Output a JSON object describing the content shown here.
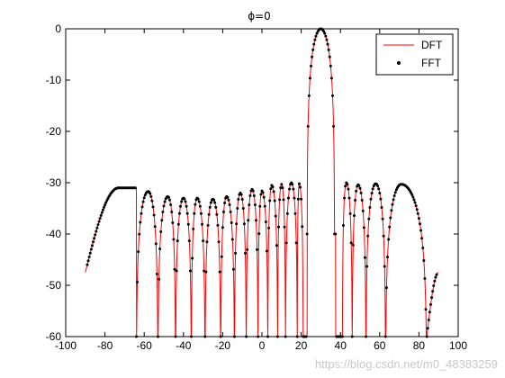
{
  "chart_data": {
    "type": "line",
    "title": "ϕ=0",
    "xlabel": "",
    "ylabel": "",
    "xlim": [
      -100,
      100
    ],
    "ylim": [
      -60,
      0
    ],
    "xticks": [
      "-100",
      "-80",
      "-60",
      "-40",
      "-20",
      "0",
      "20",
      "40",
      "60",
      "80",
      "100"
    ],
    "yticks": [
      "0",
      "-10",
      "-20",
      "-30",
      "-40",
      "-50",
      "-60"
    ],
    "grid": false,
    "legend_position": "top-right",
    "series": [
      {
        "name": "DFT",
        "style": "solid line",
        "color": "#ff0000"
      },
      {
        "name": "FFT",
        "style": "dot markers",
        "color": "#000000"
      }
    ],
    "x_range": [
      -90,
      90
    ],
    "main_lobe": {
      "x": 30,
      "y": 0
    },
    "nulls_x": [
      -64,
      -53,
      -44,
      -36,
      -29,
      -21,
      -14,
      -8,
      -2,
      3,
      8,
      12,
      18,
      21,
      41,
      46,
      53,
      63,
      84
    ],
    "sidelobes": [
      {
        "x": -73,
        "y": -31
      },
      {
        "x": -58,
        "y": -31.7
      },
      {
        "x": -48,
        "y": -32.7
      },
      {
        "x": -40,
        "y": -33
      },
      {
        "x": -33,
        "y": -33
      },
      {
        "x": -25,
        "y": -33.2
      },
      {
        "x": -18,
        "y": -32.7
      },
      {
        "x": -11,
        "y": -32
      },
      {
        "x": -5,
        "y": -31.3
      },
      {
        "x": 0,
        "y": -31.6
      },
      {
        "x": 5,
        "y": -30.5
      },
      {
        "x": 10,
        "y": -30.3
      },
      {
        "x": 15,
        "y": -30
      },
      {
        "x": 19,
        "y": -30.2
      },
      {
        "x": 43,
        "y": -30
      },
      {
        "x": 49,
        "y": -30.4
      },
      {
        "x": 58,
        "y": -30.2
      },
      {
        "x": 71,
        "y": -30.3
      }
    ],
    "edge_values": [
      {
        "x": -90,
        "y": -47.5
      },
      {
        "x": 90,
        "y": -47.5
      }
    ]
  },
  "watermark": "https://blog.csdn.net/m0_48383259"
}
